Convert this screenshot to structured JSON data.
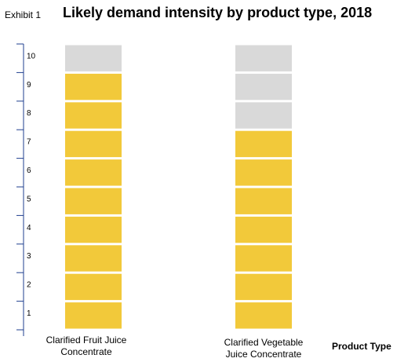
{
  "exhibit_label": "Exhibit 1",
  "chart_data": {
    "type": "bar",
    "title": "Likely demand intensity by product type, 2018",
    "xlabel": "Product Type",
    "ylabel": "",
    "ylim": [
      0,
      10
    ],
    "yticks": [
      "1",
      "2",
      "3",
      "4",
      "5",
      "6",
      "7",
      "8",
      "9",
      "10"
    ],
    "categories": [
      [
        "Clarified Fruit Juice",
        "Concentrate"
      ],
      [
        "Clarified Vegetable",
        "Juice Concentrate"
      ]
    ],
    "values": [
      9,
      7
    ],
    "max_value": 10,
    "colors": {
      "filled": "#f2c93a",
      "empty": "#d9d9d9",
      "axis": "#1f3f8f"
    }
  }
}
